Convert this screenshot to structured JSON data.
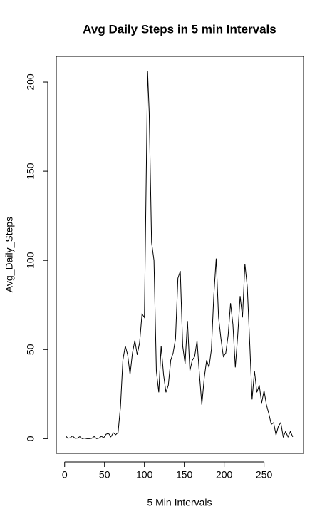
{
  "chart_data": {
    "type": "line",
    "title": "Avg Daily Steps in 5 min Intervals",
    "x_label": "5 Min Intervals",
    "y_label": "Avg_Daily_Steps",
    "x": [
      1,
      4,
      7,
      10,
      13,
      16,
      19,
      22,
      25,
      28,
      31,
      34,
      37,
      40,
      43,
      46,
      49,
      52,
      55,
      58,
      61,
      64,
      67,
      70,
      73,
      76,
      79,
      82,
      85,
      88,
      91,
      94,
      97,
      100,
      104,
      106,
      109,
      112,
      115,
      118,
      121,
      124,
      127,
      130,
      133,
      136,
      139,
      142,
      145,
      148,
      151,
      154,
      157,
      160,
      163,
      166,
      169,
      172,
      175,
      178,
      181,
      184,
      187,
      190,
      193,
      196,
      199,
      202,
      205,
      208,
      211,
      214,
      217,
      220,
      223,
      226,
      229,
      232,
      235,
      238,
      241,
      244,
      247,
      250,
      253,
      256,
      259,
      262,
      265,
      268,
      271,
      274,
      277,
      280,
      283,
      286
    ],
    "series": [
      {
        "name": "Avg_Daily_Steps",
        "color": "#000000",
        "values": [
          1.7,
          0.2,
          0.5,
          1.5,
          0.2,
          0.3,
          1.1,
          0,
          0.3,
          0,
          0,
          0.2,
          1.2,
          0,
          0.3,
          1.3,
          0.5,
          2.5,
          3,
          1,
          3.3,
          2.2,
          3.5,
          18,
          44,
          52,
          47,
          36,
          48,
          55,
          47,
          54,
          70,
          68,
          206,
          183,
          110,
          100,
          38,
          26,
          52,
          36,
          26,
          30,
          44,
          48,
          56,
          90,
          94,
          52,
          42,
          66,
          38,
          44,
          46,
          55,
          36,
          19,
          34,
          44,
          40,
          50,
          80,
          101,
          68,
          56,
          46,
          48,
          58,
          76,
          64,
          40,
          58,
          80,
          68,
          98,
          85,
          54,
          22,
          38,
          26,
          30,
          20,
          27,
          19,
          14,
          8,
          9,
          2,
          7,
          9,
          1,
          4,
          1,
          4,
          1
        ]
      }
    ],
    "xlim": [
      -10.48,
      299.48
    ],
    "ylim": [
      -8.25,
      214.4
    ],
    "xticks": [
      0,
      50,
      100,
      150,
      200,
      250
    ],
    "yticks": [
      0,
      50,
      100,
      150,
      200
    ]
  }
}
